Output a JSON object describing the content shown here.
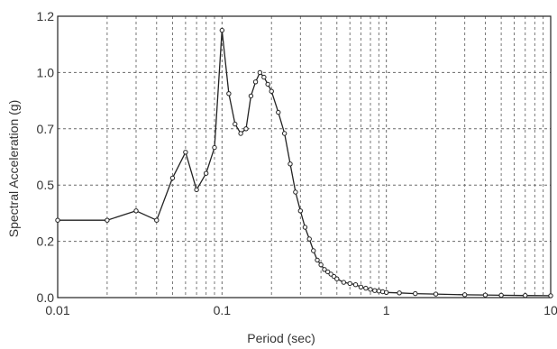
{
  "chart_data": {
    "type": "line",
    "title": "",
    "xlabel": "Period (sec)",
    "ylabel": "Spectral Acceleration (g)",
    "x_scale": "log",
    "xlim": [
      0.01,
      10
    ],
    "ylim": [
      0,
      1.2
    ],
    "x_tick_labels": [
      "0.01",
      "0.1",
      "1",
      "10"
    ],
    "y_ticks": [
      {
        "value": 0.0,
        "label": "0.0"
      },
      {
        "value": 0.24,
        "label": "0.2"
      },
      {
        "value": 0.48,
        "label": "0.5"
      },
      {
        "value": 0.72,
        "label": "0.7"
      },
      {
        "value": 0.96,
        "label": "1.0"
      },
      {
        "value": 1.2,
        "label": "1.2"
      }
    ],
    "grid": true,
    "markers": true,
    "series": [
      {
        "x": [
          0.01,
          0.02,
          0.03,
          0.04,
          0.05,
          0.06,
          0.07,
          0.08,
          0.09,
          0.1,
          0.11,
          0.12,
          0.13,
          0.14,
          0.15,
          0.16,
          0.17,
          0.18,
          0.19,
          0.2,
          0.22,
          0.24,
          0.26,
          0.28,
          0.3,
          0.32,
          0.34,
          0.36,
          0.38,
          0.4,
          0.42,
          0.44,
          0.46,
          0.48,
          0.5,
          0.55,
          0.6,
          0.65,
          0.7,
          0.75,
          0.8,
          0.85,
          0.9,
          0.95,
          1.0,
          1.2,
          1.5,
          2.0,
          3.0,
          4.0,
          5.0,
          7.0,
          10.0
        ],
        "y": [
          0.33,
          0.33,
          0.37,
          0.33,
          0.51,
          0.62,
          0.46,
          0.53,
          0.64,
          1.14,
          0.87,
          0.74,
          0.7,
          0.72,
          0.86,
          0.92,
          0.96,
          0.94,
          0.91,
          0.88,
          0.79,
          0.7,
          0.57,
          0.45,
          0.37,
          0.3,
          0.25,
          0.2,
          0.16,
          0.14,
          0.12,
          0.11,
          0.1,
          0.09,
          0.08,
          0.065,
          0.06,
          0.055,
          0.045,
          0.04,
          0.035,
          0.03,
          0.028,
          0.025,
          0.022,
          0.02,
          0.017,
          0.015,
          0.012,
          0.011,
          0.01,
          0.009,
          0.008
        ]
      }
    ],
    "colors": {
      "line": "#222222",
      "grid": "#6a6a6a",
      "frame": "#222222"
    }
  }
}
